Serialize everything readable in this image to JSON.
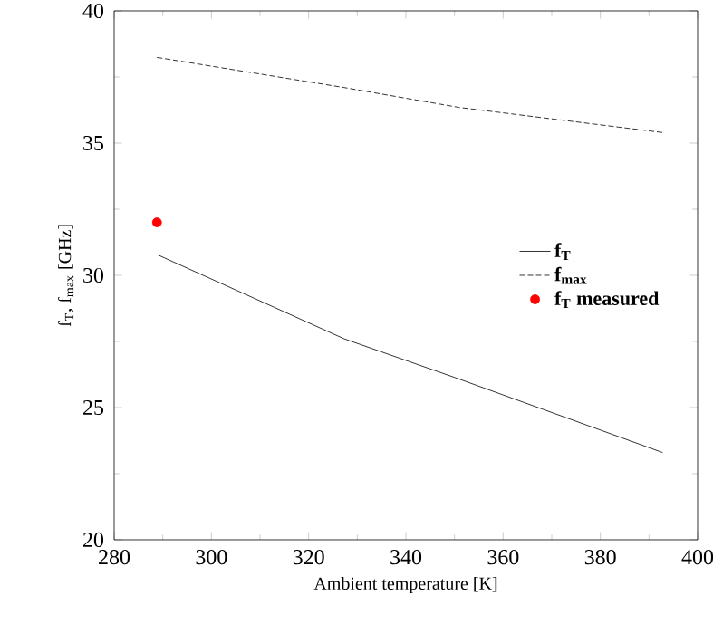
{
  "chart_data": {
    "type": "line",
    "xlabel": "Ambient temperature [K]",
    "ylabel": "f$_{T}$, f$_{max}$ [GHz]",
    "xlim": [
      280,
      400
    ],
    "ylim": [
      20,
      40
    ],
    "xticks": [
      280,
      300,
      320,
      340,
      360,
      380,
      400
    ],
    "yticks": [
      20,
      25,
      30,
      35,
      40
    ],
    "grid": false,
    "legend": "right",
    "series": [
      {
        "name": "f$_{T}$",
        "color": "#000000",
        "line_style": "solid",
        "marker": "none",
        "x": [
          289,
          327.3,
          350,
          392.8
        ],
        "values": [
          30.77,
          27.6,
          26.14,
          23.3
        ]
      },
      {
        "name": "f$_{max}$",
        "color": "#000000",
        "line_style": "dashed",
        "marker": "none",
        "x": [
          288.8,
          327.3,
          350.9,
          392.8
        ],
        "values": [
          38.24,
          37.1,
          36.35,
          35.4
        ]
      },
      {
        "name": "f$_{T}$ measured",
        "type": "scatter",
        "color": "#ff0000",
        "marker": "circle",
        "x": [
          288.8
        ],
        "values": [
          32.0
        ]
      }
    ]
  }
}
